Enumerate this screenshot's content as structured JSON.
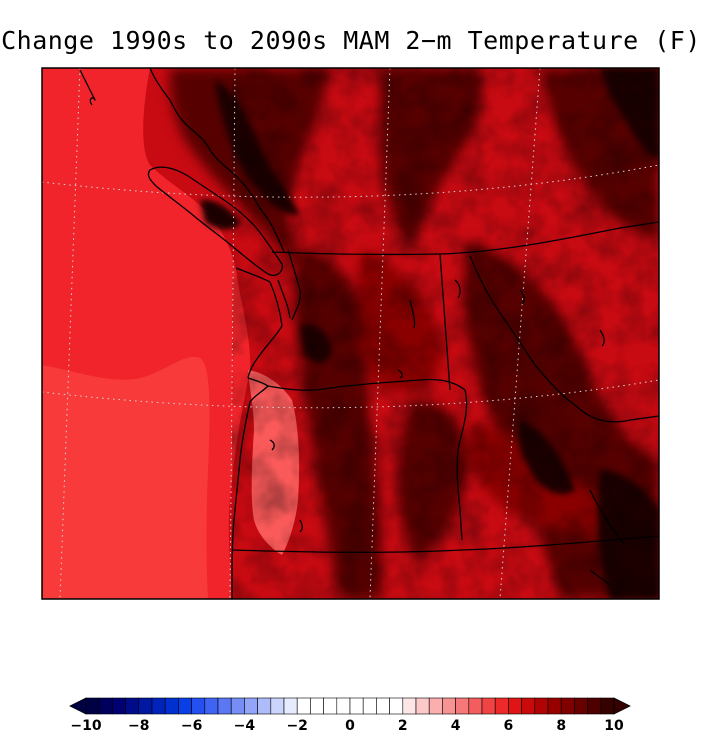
{
  "title": "Change 1990s to 2090s MAM 2−m Temperature (F)",
  "map": {
    "description_region": "Pacific Northwest",
    "colors": {
      "ocean_outer": "#f0242a",
      "ocean_inner": "#f83a3a",
      "coast_light": "#fb5a5a",
      "land_mid": "#c80a12",
      "land_dark": "#8a0000",
      "land_darker": "#560000",
      "land_darkest": "#1e0000",
      "lines": "#000000",
      "graticule": "#d8d8d8"
    }
  },
  "colorbar": {
    "min": -10,
    "max": 10,
    "step": 0.5,
    "tick_labels": [
      "−10",
      "−8",
      "−6",
      "−4",
      "−2",
      "0",
      "2",
      "4",
      "6",
      "8",
      "10"
    ],
    "tick_values": [
      -10,
      -8,
      -6,
      -4,
      -2,
      0,
      2,
      4,
      6,
      8,
      10
    ],
    "colors": [
      "#000045",
      "#00005c",
      "#000073",
      "#000b8a",
      "#0018a2",
      "#0024b9",
      "#0030cf",
      "#0a3ee6",
      "#2450f0",
      "#3f63f2",
      "#5a78f4",
      "#768ef6",
      "#92a5f8",
      "#aebdfa",
      "#cad4fc",
      "#e6ebfe",
      "#ffffff",
      "#ffffff",
      "#ffffff",
      "#ffffff",
      "#ffffff",
      "#ffffff",
      "#ffffff",
      "#ffffff",
      "#fee6e6",
      "#fcc9c9",
      "#faaeae",
      "#f89393",
      "#f67878",
      "#f35d5d",
      "#f04444",
      "#ec2a2a",
      "#e01414",
      "#c80a0a",
      "#b00404",
      "#980000",
      "#800000",
      "#680000",
      "#4e0000",
      "#350000"
    ]
  }
}
